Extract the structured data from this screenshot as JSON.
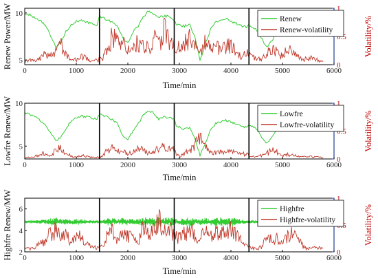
{
  "chart_data": [
    {
      "type": "line",
      "xlabel": "Time/min",
      "ylabel": "Renew Power/MW",
      "y2label": "Volatility/%",
      "xlim": [
        0,
        6000
      ],
      "ylim": [
        4.5,
        10.5
      ],
      "y2lim": [
        0,
        1
      ],
      "xticks": [
        "0",
        "1000",
        "2000",
        "3000",
        "4000",
        "5000",
        "6000"
      ],
      "yticks": [
        "5",
        "10"
      ],
      "y2ticks": [
        "0",
        "0.5",
        "1"
      ],
      "dividers": [
        1450,
        2900,
        4350
      ],
      "legend_position": "top-right",
      "series": [
        {
          "name": "Renew",
          "color": "#33cc33",
          "axis": "left",
          "x": [
            0,
            100,
            200,
            300,
            400,
            500,
            600,
            700,
            800,
            900,
            1000,
            1100,
            1200,
            1300,
            1400,
            1450,
            1500,
            1600,
            1700,
            1800,
            1900,
            2000,
            2100,
            2200,
            2300,
            2400,
            2500,
            2600,
            2700,
            2800,
            2900,
            2950,
            3000,
            3100,
            3200,
            3300,
            3400,
            3500,
            3600,
            3700,
            3800,
            3900,
            4000,
            4100,
            4200,
            4300,
            4350,
            4400,
            4500,
            4600,
            4700,
            4800,
            4900,
            5000,
            5100,
            5200,
            5300,
            5400,
            5500,
            5600,
            5700,
            5800
          ],
          "values": [
            9.9,
            9.8,
            9.5,
            9.2,
            8.7,
            7.6,
            6.4,
            6.8,
            8.0,
            8.7,
            9.1,
            9.2,
            9.0,
            8.9,
            8.7,
            9.6,
            9.5,
            9.3,
            9.0,
            8.6,
            7.4,
            6.8,
            8.0,
            8.6,
            9.6,
            10.2,
            9.9,
            9.5,
            9.7,
            9.6,
            9.1,
            8.7,
            8.7,
            8.6,
            8.8,
            7.5,
            4.9,
            6.6,
            8.2,
            9.0,
            9.2,
            9.4,
            9.1,
            8.9,
            8.6,
            8.5,
            8.7,
            8.6,
            8.2,
            7.2,
            6.3,
            7.1,
            8.0,
            8.2,
            8.1,
            8.0,
            7.9,
            8.0,
            8.1,
            8.0,
            7.9,
            7.8
          ]
        },
        {
          "name": "Renew-volatility",
          "color": "#c0392b",
          "axis": "right",
          "x": [
            0,
            100,
            200,
            300,
            400,
            500,
            600,
            700,
            800,
            900,
            1000,
            1100,
            1200,
            1300,
            1400,
            1500,
            1600,
            1700,
            1800,
            1900,
            2000,
            2100,
            2200,
            2300,
            2400,
            2500,
            2600,
            2700,
            2800,
            2900,
            3000,
            3100,
            3200,
            3300,
            3400,
            3500,
            3600,
            3700,
            3800,
            3900,
            4000,
            4100,
            4200,
            4300,
            4400,
            4500,
            4600,
            4700,
            4800,
            4900,
            5000,
            5100,
            5200,
            5300,
            5400,
            5500,
            5600,
            5700,
            5800
          ],
          "values": [
            0.05,
            0.08,
            0.06,
            0.1,
            0.2,
            0.15,
            0.25,
            0.35,
            0.2,
            0.1,
            0.08,
            0.15,
            0.1,
            0.06,
            0.08,
            0.1,
            0.3,
            0.5,
            0.4,
            0.35,
            0.3,
            0.25,
            0.4,
            0.35,
            0.3,
            0.45,
            0.35,
            0.6,
            0.4,
            0.35,
            0.3,
            0.4,
            0.45,
            0.35,
            0.2,
            0.4,
            0.3,
            0.35,
            0.25,
            0.3,
            0.35,
            0.2,
            0.15,
            0.2,
            0.15,
            0.1,
            0.1,
            0.2,
            0.3,
            0.2,
            0.15,
            0.3,
            0.2,
            0.15,
            0.1,
            0.12,
            0.1,
            0.08,
            0.05
          ]
        }
      ]
    },
    {
      "type": "line",
      "xlabel": "Time/min",
      "ylabel": "Lowfre Renew/MW",
      "y2label": "Volatility/%",
      "xlim": [
        0,
        6000
      ],
      "ylim": [
        3.5,
        10
      ],
      "y2lim": [
        0,
        1
      ],
      "xticks": [
        "0",
        "1000",
        "2000",
        "3000",
        "4000",
        "5000",
        "6000"
      ],
      "yticks": [
        "5",
        "10"
      ],
      "y2ticks": [
        "0",
        "0.5",
        "1"
      ],
      "dividers": [
        1450,
        2900,
        4350
      ],
      "legend_position": "top-right",
      "series": [
        {
          "name": "Lowfre",
          "color": "#33cc33",
          "axis": "left",
          "x": [
            0,
            100,
            200,
            300,
            400,
            500,
            600,
            700,
            800,
            900,
            1000,
            1100,
            1200,
            1300,
            1400,
            1450,
            1500,
            1600,
            1700,
            1800,
            1900,
            2000,
            2100,
            2200,
            2300,
            2400,
            2500,
            2600,
            2700,
            2800,
            2900,
            2950,
            3000,
            3100,
            3200,
            3300,
            3400,
            3500,
            3600,
            3700,
            3800,
            3900,
            4000,
            4100,
            4200,
            4300,
            4350,
            4400,
            4500,
            4600,
            4700,
            4800,
            4900,
            5000,
            5100,
            5200,
            5300,
            5400,
            5500,
            5600,
            5700,
            5800
          ],
          "values": [
            8.9,
            8.7,
            8.4,
            8.0,
            7.5,
            6.5,
            5.6,
            6.0,
            7.1,
            7.9,
            8.3,
            8.5,
            8.4,
            8.3,
            8.2,
            8.7,
            8.6,
            8.4,
            8.1,
            7.6,
            6.2,
            5.7,
            6.8,
            7.6,
            8.6,
            9.1,
            8.9,
            8.1,
            8.4,
            8.3,
            8.1,
            7.2,
            7.2,
            7.0,
            7.1,
            6.0,
            3.9,
            5.3,
            6.8,
            7.6,
            7.8,
            8.0,
            7.8,
            7.6,
            7.3,
            7.2,
            7.4,
            7.3,
            7.0,
            6.0,
            5.3,
            6.1,
            6.9,
            7.1,
            7.0,
            6.9,
            6.9,
            7.0,
            7.0,
            6.9,
            6.9,
            6.8
          ]
        },
        {
          "name": "Lowfre-volatility",
          "color": "#c0392b",
          "axis": "right",
          "x": [
            0,
            100,
            200,
            300,
            400,
            500,
            600,
            700,
            800,
            900,
            1000,
            1100,
            1200,
            1300,
            1400,
            1500,
            1600,
            1700,
            1800,
            1900,
            2000,
            2100,
            2200,
            2300,
            2400,
            2500,
            2600,
            2700,
            2800,
            2900,
            3000,
            3100,
            3200,
            3300,
            3400,
            3500,
            3600,
            3700,
            3800,
            3900,
            4000,
            4100,
            4200,
            4300,
            4400,
            4500,
            4600,
            4700,
            4800,
            4900,
            5000,
            5100,
            5200,
            5300,
            5400,
            5500,
            5600,
            5700,
            5800
          ],
          "values": [
            0.02,
            0.03,
            0.05,
            0.08,
            0.1,
            0.08,
            0.15,
            0.2,
            0.1,
            0.05,
            0.04,
            0.06,
            0.05,
            0.03,
            0.03,
            0.04,
            0.15,
            0.2,
            0.18,
            0.12,
            0.1,
            0.12,
            0.2,
            0.15,
            0.1,
            0.15,
            0.18,
            0.22,
            0.2,
            0.15,
            0.05,
            0.1,
            0.15,
            0.25,
            0.35,
            0.2,
            0.15,
            0.1,
            0.12,
            0.1,
            0.15,
            0.1,
            0.08,
            0.1,
            0.05,
            0.05,
            0.06,
            0.1,
            0.15,
            0.12,
            0.05,
            0.08,
            0.06,
            0.05,
            0.04,
            0.05,
            0.04,
            0.03,
            0.02
          ]
        }
      ]
    },
    {
      "type": "line",
      "xlabel": "Time/min",
      "ylabel": "Highfre Renew/MW",
      "y2label": "Volatility/%",
      "xlim": [
        0,
        6000
      ],
      "ylim": [
        2,
        7
      ],
      "y2lim": [
        0,
        1
      ],
      "xticks": [
        "0",
        "1000",
        "2000",
        "3000",
        "4000",
        "5000",
        "6000"
      ],
      "yticks": [
        "2",
        "4",
        "6"
      ],
      "y2ticks": [
        "0",
        "0.5",
        "1"
      ],
      "dividers": [
        1450,
        2900,
        4350
      ],
      "legend_position": "top-right",
      "series": [
        {
          "name": "Highfre",
          "color": "#33cc33",
          "axis": "left",
          "x": [
            0,
            5800
          ],
          "values": [
            4.8,
            4.8
          ]
        },
        {
          "name": "Highfre-volatility",
          "color": "#c0392b",
          "axis": "right",
          "x": [
            0,
            100,
            200,
            300,
            400,
            500,
            600,
            700,
            800,
            900,
            1000,
            1100,
            1200,
            1300,
            1400,
            1500,
            1600,
            1700,
            1800,
            1900,
            2000,
            2100,
            2200,
            2300,
            2400,
            2500,
            2600,
            2700,
            2800,
            2900,
            3000,
            3100,
            3200,
            3300,
            3400,
            3500,
            3600,
            3700,
            3800,
            3900,
            4000,
            4100,
            4200,
            4300,
            4400,
            4500,
            4600,
            4700,
            4800,
            4900,
            5000,
            5100,
            5200,
            5300,
            5400,
            5500,
            5600,
            5700,
            5800
          ],
          "values": [
            0.1,
            0.05,
            0.08,
            0.15,
            0.2,
            0.35,
            0.4,
            0.25,
            0.3,
            0.2,
            0.35,
            0.25,
            0.15,
            0.1,
            0.08,
            0.1,
            0.3,
            0.4,
            0.2,
            0.35,
            0.3,
            0.25,
            0.2,
            0.45,
            0.35,
            0.4,
            0.6,
            0.35,
            0.5,
            0.3,
            0.25,
            0.35,
            0.4,
            0.3,
            0.25,
            0.4,
            0.3,
            0.35,
            0.4,
            0.3,
            0.45,
            0.3,
            0.2,
            0.1,
            0.08,
            0.05,
            0.1,
            0.3,
            0.2,
            0.25,
            0.15,
            0.3,
            0.35,
            0.25,
            0.1,
            0.05,
            0.1,
            0.08,
            0.05
          ]
        }
      ]
    }
  ]
}
